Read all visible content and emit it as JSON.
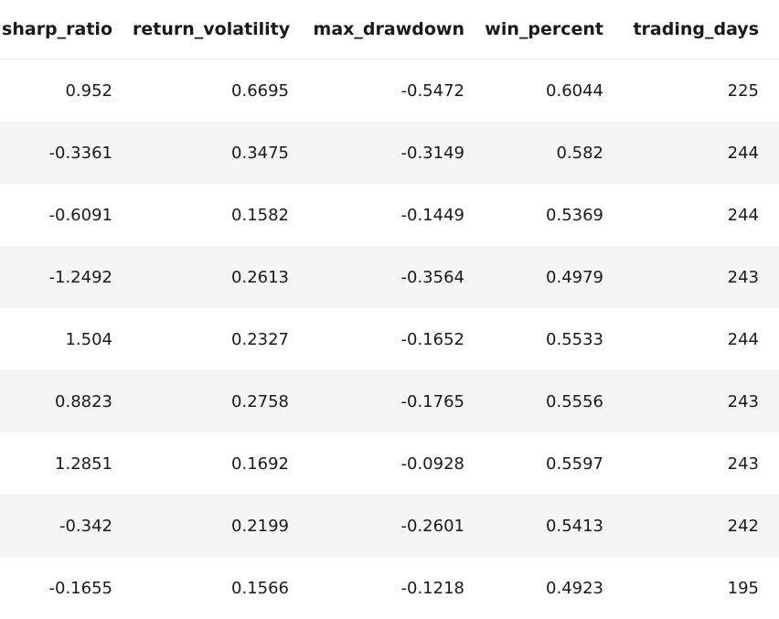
{
  "table": {
    "columns": [
      "sharp_ratio",
      "return_volatility",
      "max_drawdown",
      "win_percent",
      "trading_days"
    ],
    "rows": [
      [
        "0.952",
        "0.6695",
        "-0.5472",
        "0.6044",
        "225"
      ],
      [
        "-0.3361",
        "0.3475",
        "-0.3149",
        "0.582",
        "244"
      ],
      [
        "-0.6091",
        "0.1582",
        "-0.1449",
        "0.5369",
        "244"
      ],
      [
        "-1.2492",
        "0.2613",
        "-0.3564",
        "0.4979",
        "243"
      ],
      [
        "1.504",
        "0.2327",
        "-0.1652",
        "0.5533",
        "244"
      ],
      [
        "0.8823",
        "0.2758",
        "-0.1765",
        "0.5556",
        "243"
      ],
      [
        "1.2851",
        "0.1692",
        "-0.0928",
        "0.5597",
        "243"
      ],
      [
        "-0.342",
        "0.2199",
        "-0.2601",
        "0.5413",
        "242"
      ],
      [
        "-0.1655",
        "0.1566",
        "-0.1218",
        "0.4923",
        "195"
      ]
    ]
  }
}
